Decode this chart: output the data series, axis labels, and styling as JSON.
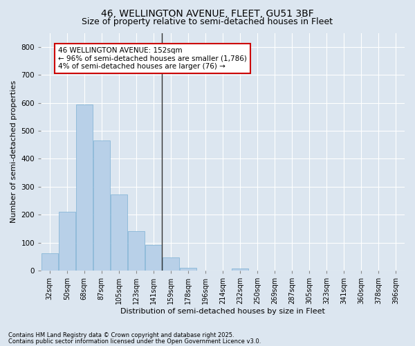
{
  "title1": "46, WELLINGTON AVENUE, FLEET, GU51 3BF",
  "title2": "Size of property relative to semi-detached houses in Fleet",
  "xlabel": "Distribution of semi-detached houses by size in Fleet",
  "ylabel": "Number of semi-detached properties",
  "categories": [
    "32sqm",
    "50sqm",
    "68sqm",
    "87sqm",
    "105sqm",
    "123sqm",
    "141sqm",
    "159sqm",
    "178sqm",
    "196sqm",
    "214sqm",
    "232sqm",
    "250sqm",
    "269sqm",
    "287sqm",
    "305sqm",
    "323sqm",
    "341sqm",
    "360sqm",
    "378sqm",
    "396sqm"
  ],
  "values": [
    63,
    210,
    595,
    465,
    272,
    140,
    91,
    47,
    10,
    0,
    0,
    8,
    0,
    0,
    0,
    0,
    0,
    0,
    0,
    0,
    0
  ],
  "bar_color": "#b8d0e8",
  "bar_edge_color": "#7aafd4",
  "marker_bar_index": 7,
  "annotation_title": "46 WELLINGTON AVENUE: 152sqm",
  "annotation_line1": "← 96% of semi-detached houses are smaller (1,786)",
  "annotation_line2": "4% of semi-detached houses are larger (76) →",
  "vline_color": "#333333",
  "annotation_box_facecolor": "#ffffff",
  "annotation_box_edgecolor": "#cc0000",
  "bg_color": "#dce6f0",
  "plot_bg_color": "#dce6f0",
  "ylim": [
    0,
    850
  ],
  "yticks": [
    0,
    100,
    200,
    300,
    400,
    500,
    600,
    700,
    800
  ],
  "grid_color": "#ffffff",
  "title1_fontsize": 10,
  "title2_fontsize": 9,
  "tick_fontsize": 7,
  "ylabel_fontsize": 8,
  "xlabel_fontsize": 8,
  "annot_fontsize": 7.5,
  "footer_fontsize": 6,
  "footer1": "Contains HM Land Registry data © Crown copyright and database right 2025.",
  "footer2": "Contains public sector information licensed under the Open Government Licence v3.0."
}
